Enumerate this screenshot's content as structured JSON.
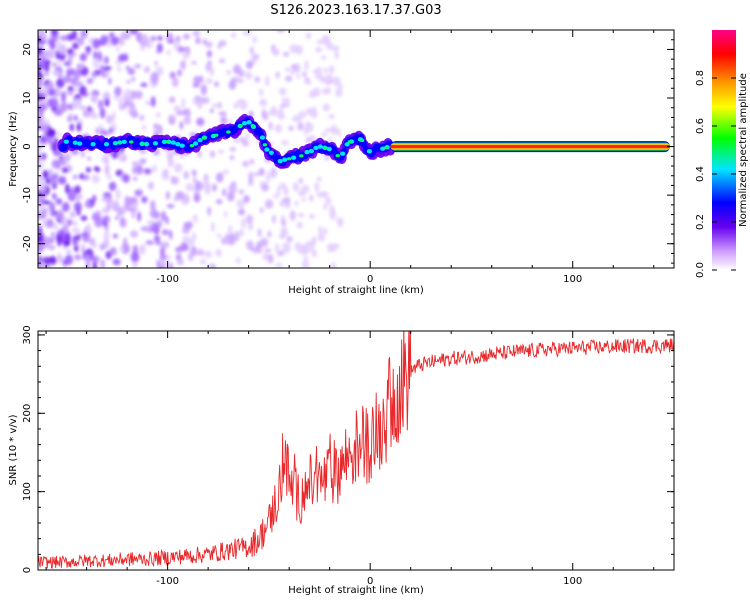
{
  "title": "S126.2023.163.17.37.G03",
  "chart_data": [
    {
      "type": "heatmap",
      "xlabel": "Height of straight line (km)",
      "ylabel": "Frequency (Hz)",
      "xlim": [
        -164,
        150
      ],
      "ylim": [
        -25,
        24
      ],
      "xticks": [
        -100,
        0,
        100
      ],
      "yticks": [
        -20,
        -10,
        0,
        10,
        20
      ],
      "x_tick_labels": [
        "-100",
        "0",
        "100"
      ],
      "y_tick_labels": [
        "-20",
        "-10",
        "0",
        "10",
        "20"
      ],
      "ridge": {
        "x": [
          -150,
          -140,
          -130,
          -120,
          -110,
          -100,
          -90,
          -80,
          -70,
          -60,
          -55,
          -50,
          -45,
          -40,
          -35,
          -30,
          -25,
          -20,
          -15,
          -10,
          -5,
          0,
          5,
          10,
          150
        ],
        "y": [
          1,
          0.5,
          0.5,
          1,
          0.5,
          1,
          0,
          2,
          3,
          5,
          3,
          -1,
          -3,
          -2.5,
          -2,
          -1,
          0,
          -0.5,
          -2,
          1,
          1.5,
          -1,
          -0.5,
          0,
          0
        ]
      },
      "colorbar": {
        "label": "Normalized spectral amplitude",
        "range": [
          0,
          1
        ],
        "ticks": [
          0.0,
          0.2,
          0.4,
          0.6,
          0.8
        ],
        "tick_labels": [
          "0.0",
          "0.2",
          "0.4",
          "0.6",
          "0.8"
        ],
        "colors": [
          "#ffffff",
          "#cc99ff",
          "#6600ee",
          "#0000ff",
          "#00e5ff",
          "#00ff00",
          "#ffff00",
          "#ff9900",
          "#ff0000",
          "#ff0088"
        ]
      },
      "grid": false
    },
    {
      "type": "line",
      "xlabel": "Height of straight line (km)",
      "ylabel": "SNR (10 * v/v)",
      "xlim": [
        -164,
        150
      ],
      "ylim": [
        0,
        305
      ],
      "xticks": [
        -100,
        0,
        100
      ],
      "yticks": [
        0,
        100,
        200,
        300
      ],
      "x_tick_labels": [
        "-100",
        "0",
        "100"
      ],
      "y_tick_labels": [
        "0",
        "100",
        "200",
        "300"
      ],
      "color": "#e8282a",
      "series": [
        {
          "x": [
            -164,
            -150,
            -140,
            -130,
            -120,
            -110,
            -100,
            -90,
            -80,
            -70,
            -60,
            -55,
            -50,
            -45,
            -42,
            -40,
            -35,
            -30,
            -25,
            -20,
            -15,
            -10,
            -5,
            0,
            5,
            10,
            15,
            20,
            25,
            30,
            40,
            50,
            60,
            70,
            80,
            90,
            100,
            110,
            120,
            130,
            140,
            150
          ],
          "y": [
            10,
            10,
            12,
            12,
            14,
            14,
            16,
            18,
            20,
            25,
            30,
            40,
            60,
            100,
            150,
            110,
            90,
            110,
            110,
            120,
            130,
            150,
            160,
            165,
            180,
            210,
            240,
            255,
            262,
            265,
            270,
            272,
            275,
            278,
            280,
            282,
            283,
            284,
            285,
            286,
            286,
            287
          ]
        }
      ],
      "grid": false
    }
  ]
}
